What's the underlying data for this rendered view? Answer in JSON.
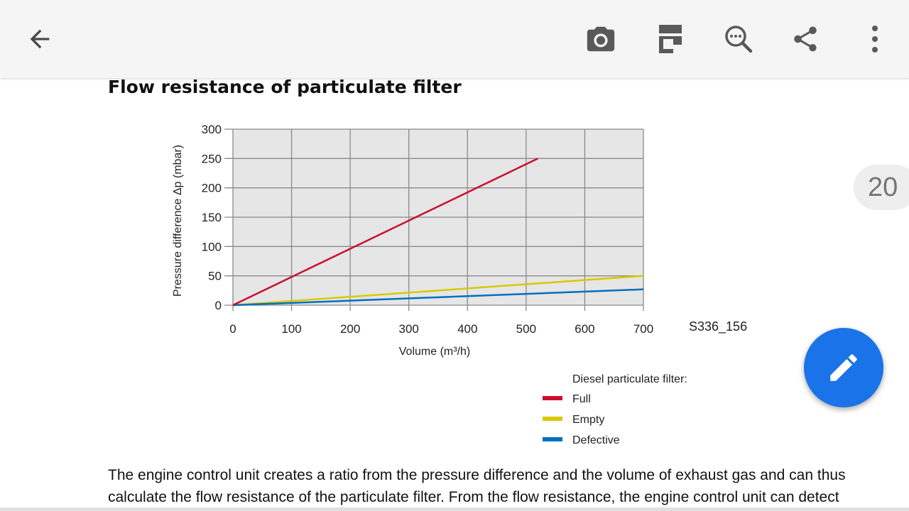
{
  "toolbar": {
    "back_icon": "arrow-back-icon",
    "icons": [
      "camera-icon",
      "bookmark-icon",
      "zoom-search-icon",
      "share-icon",
      "more-vertical-icon"
    ]
  },
  "document": {
    "title": "Flow resistance of particulate filter",
    "figure_code": "S336_156",
    "legend_title": "Diesel particulate filter:",
    "paragraph": "The engine control unit creates a ratio from the pressure difference and the volume of exhaust gas and can thus calculate the flow resistance of the particulate filter. From the flow resistance, the engine control unit can detect the"
  },
  "page_indicator": "20",
  "fab": {
    "icon": "edit-pencil-icon"
  },
  "colors": {
    "full": "#c8102e",
    "empty": "#d9c900",
    "defective": "#0070c0",
    "plot_bg": "#e6e6e6",
    "fab": "#1a73e8"
  },
  "chart_data": {
    "type": "line",
    "x_label": "Volume (m³/h)",
    "y_label": "Pressure difference Δp (mbar)",
    "xlim": [
      0,
      700
    ],
    "ylim": [
      0,
      300
    ],
    "x_ticks": [
      0,
      100,
      200,
      300,
      400,
      500,
      600,
      700
    ],
    "y_ticks": [
      0,
      50,
      100,
      150,
      200,
      250,
      300
    ],
    "grid": true,
    "series": [
      {
        "name": "Full",
        "x": [
          0,
          520
        ],
        "y": [
          0,
          250
        ]
      },
      {
        "name": "Empty",
        "x": [
          0,
          700
        ],
        "y": [
          0,
          50
        ]
      },
      {
        "name": "Defective",
        "x": [
          0,
          700
        ],
        "y": [
          0,
          27
        ]
      }
    ]
  }
}
